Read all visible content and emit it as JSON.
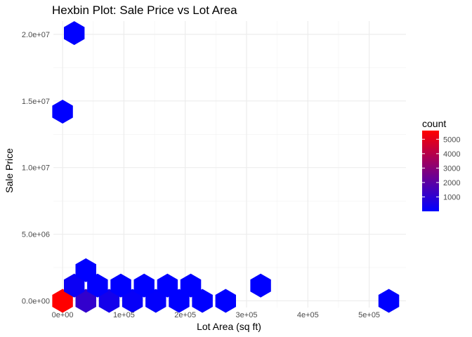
{
  "chart_data": {
    "type": "hexbin",
    "title": "Hexbin Plot: Sale Price vs Lot Area",
    "xlabel": "Lot Area (sq ft)",
    "ylabel": "Sale Price",
    "xlim": [
      -15000,
      560000
    ],
    "ylim": [
      -500000,
      21000000
    ],
    "x_ticks": [
      {
        "value": 0,
        "label": "0e+00"
      },
      {
        "value": 100000,
        "label": "1e+05"
      },
      {
        "value": 200000,
        "label": "2e+05"
      },
      {
        "value": 300000,
        "label": "3e+05"
      },
      {
        "value": 400000,
        "label": "4e+05"
      },
      {
        "value": 500000,
        "label": "5e+05"
      }
    ],
    "y_ticks": [
      {
        "value": 0,
        "label": "0.0e+00"
      },
      {
        "value": 5000000,
        "label": "5.0e+06"
      },
      {
        "value": 10000000,
        "label": "1.0e+07"
      },
      {
        "value": 15000000,
        "label": "1.5e+07"
      },
      {
        "value": 20000000,
        "label": "2.0e+07"
      }
    ],
    "grid": true,
    "bins": [
      {
        "x": 0,
        "y": 0,
        "count": 5600
      },
      {
        "x": 38000,
        "y": 0,
        "count": 1100
      },
      {
        "x": 76000,
        "y": 0,
        "count": 450
      },
      {
        "x": 114000,
        "y": 0,
        "count": 150
      },
      {
        "x": 152000,
        "y": 0,
        "count": 60
      },
      {
        "x": 190000,
        "y": 0,
        "count": 10
      },
      {
        "x": 228000,
        "y": 0,
        "count": 3
      },
      {
        "x": 266000,
        "y": 0,
        "count": 2
      },
      {
        "x": 532000,
        "y": 0,
        "count": 1
      },
      {
        "x": 19000,
        "y": 1150000,
        "count": 250
      },
      {
        "x": 57000,
        "y": 1150000,
        "count": 40
      },
      {
        "x": 95000,
        "y": 1150000,
        "count": 10
      },
      {
        "x": 133000,
        "y": 1150000,
        "count": 4
      },
      {
        "x": 171000,
        "y": 1150000,
        "count": 2
      },
      {
        "x": 209000,
        "y": 1150000,
        "count": 1
      },
      {
        "x": 323000,
        "y": 1150000,
        "count": 1
      },
      {
        "x": 38000,
        "y": 2300000,
        "count": 8
      },
      {
        "x": 0,
        "y": 14200000,
        "count": 1
      },
      {
        "x": 19000,
        "y": 20100000,
        "count": 1
      }
    ],
    "legend": {
      "title": "count",
      "position": "right",
      "min": 1,
      "max": 5600,
      "ticks": [
        1000,
        2000,
        3000,
        4000,
        5000
      ],
      "low_color": "#0000FF",
      "high_color": "#FF0000"
    }
  }
}
